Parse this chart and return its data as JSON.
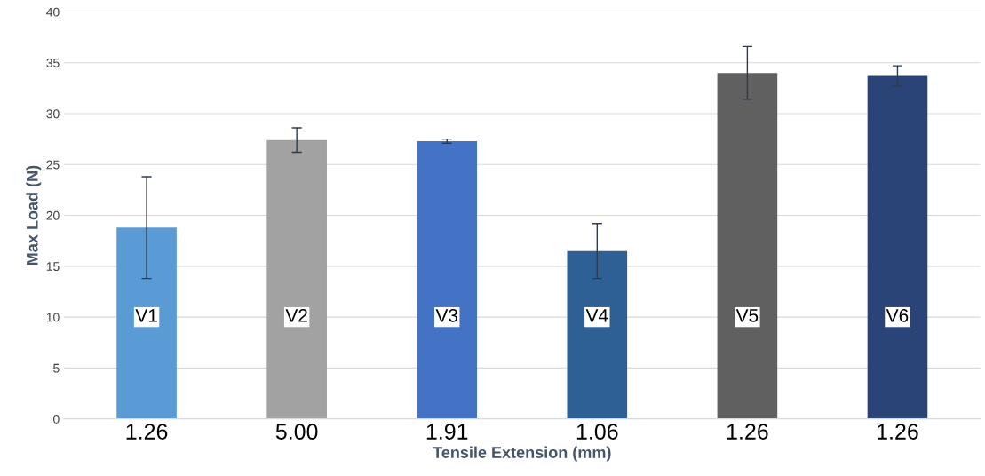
{
  "chart_data": {
    "type": "bar",
    "xlabel": "Tensile Extension (mm)",
    "ylabel": "Max Load (N)",
    "categories": [
      "1.26",
      "5.00",
      "1.91",
      "1.06",
      "1.26",
      "1.26"
    ],
    "values": [
      18.8,
      27.4,
      27.3,
      16.5,
      34.0,
      33.7
    ],
    "errors": [
      5.0,
      1.2,
      0.2,
      2.7,
      2.6,
      1.0
    ],
    "colors": [
      "#5b9bd5",
      "#a2a2a2",
      "#4472c4",
      "#2e6096",
      "#606060",
      "#2b4478"
    ],
    "annotations": [
      "V1",
      "V2",
      "V3",
      "V4",
      "V5",
      "V6"
    ],
    "ylim": [
      0,
      40
    ],
    "yticks": [
      0,
      5,
      10,
      15,
      20,
      25,
      30,
      35,
      40
    ],
    "grid": "y"
  }
}
